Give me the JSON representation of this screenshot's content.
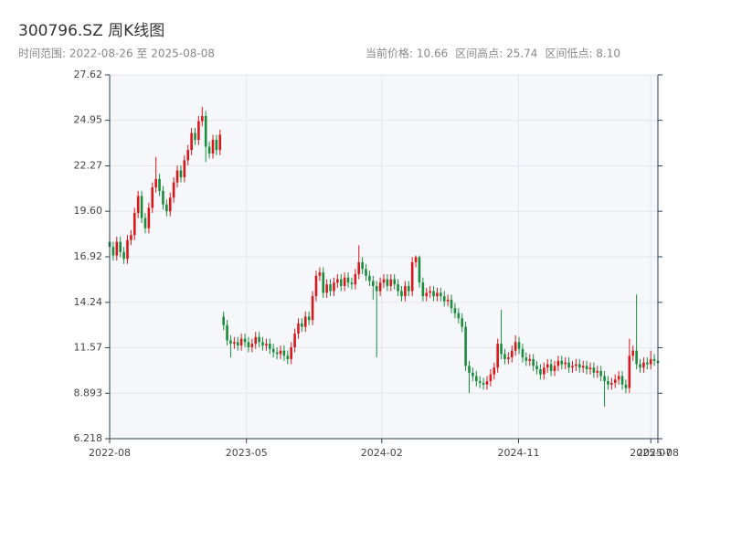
{
  "chart_data": {
    "type": "candlestick",
    "title": "300796.SZ 周K线图",
    "subtitle": "时间范围: 2022-08-26 至 2025-08-08",
    "stats": [
      "当前价格: 10.66",
      "区间高点: 25.74",
      "区间低点: 8.10"
    ],
    "up_color": "#d7191c",
    "down_color": "#1a8c3c",
    "grid": true,
    "ylim": [
      6.218,
      27.62
    ],
    "yticks": [
      6.218,
      8.893,
      11.57,
      14.24,
      16.92,
      {
        "value": 19.6,
        "label": "19.60"
      },
      22.27,
      24.95,
      27.62
    ],
    "xlim": [
      "2022-08-26",
      "2025-08-08"
    ],
    "xticks": [
      {
        "value": "2022-08-26",
        "label": "2022-08"
      },
      {
        "value": "2023-05-22",
        "label": "2023-05"
      },
      {
        "value": "2024-02-12",
        "label": "2024-02"
      },
      {
        "value": "2024-11-07",
        "label": "2024-11"
      },
      {
        "value": "2025-07-25",
        "label": "2025-07"
      },
      {
        "value": "2025-08-08",
        "label": "2025-08"
      }
    ],
    "x": [
      "2022-08-26",
      "2022-09-02",
      "2022-09-09",
      "2022-09-16",
      "2022-09-23",
      "2022-09-30",
      "2022-10-07",
      "2022-10-14",
      "2022-10-21",
      "2022-10-28",
      "2022-11-04",
      "2022-11-11",
      "2022-11-18",
      "2022-11-25",
      "2022-12-02",
      "2022-12-09",
      "2022-12-16",
      "2022-12-23",
      "2022-12-30",
      "2023-01-06",
      "2023-01-13",
      "2023-01-20",
      "2023-01-27",
      "2023-02-03",
      "2023-02-10",
      "2023-02-17",
      "2023-02-24",
      "2023-03-03",
      "2023-03-10",
      "2023-03-17",
      "2023-03-24",
      "2023-03-31",
      "2023-04-07",
      "2023-04-14",
      "2023-04-21",
      "2023-04-28",
      "2023-05-05",
      "2023-05-12",
      "2023-05-19",
      "2023-05-26",
      "2023-06-02",
      "2023-06-09",
      "2023-06-16",
      "2023-06-23",
      "2023-06-30",
      "2023-07-07",
      "2023-07-14",
      "2023-07-21",
      "2023-07-28",
      "2023-08-04",
      "2023-08-11",
      "2023-08-18",
      "2023-08-25",
      "2023-09-01",
      "2023-09-08",
      "2023-09-15",
      "2023-09-22",
      "2023-09-29",
      "2023-10-06",
      "2023-10-13",
      "2023-10-20",
      "2023-10-27",
      "2023-11-03",
      "2023-11-10",
      "2023-11-17",
      "2023-11-24",
      "2023-12-01",
      "2023-12-08",
      "2023-12-15",
      "2023-12-22",
      "2023-12-29",
      "2024-01-05",
      "2024-01-12",
      "2024-01-19",
      "2024-01-26",
      "2024-02-02",
      "2024-02-09",
      "2024-02-16",
      "2024-02-23",
      "2024-03-01",
      "2024-03-08",
      "2024-03-15",
      "2024-03-22",
      "2024-03-29",
      "2024-04-05",
      "2024-04-12",
      "2024-04-19",
      "2024-04-26",
      "2024-05-03",
      "2024-05-10",
      "2024-05-17",
      "2024-05-24",
      "2024-05-31",
      "2024-06-07",
      "2024-06-14",
      "2024-06-21",
      "2024-06-28",
      "2024-07-05",
      "2024-07-12",
      "2024-07-19",
      "2024-07-26",
      "2024-08-02",
      "2024-08-09",
      "2024-08-16",
      "2024-08-23",
      "2024-08-30",
      "2024-09-06",
      "2024-09-13",
      "2024-09-20",
      "2024-09-27",
      "2024-10-04",
      "2024-10-11",
      "2024-10-18",
      "2024-10-25",
      "2024-11-01",
      "2024-11-08",
      "2024-11-15",
      "2024-11-22",
      "2024-11-29",
      "2024-12-06",
      "2024-12-13",
      "2024-12-20",
      "2024-12-27",
      "2025-01-03",
      "2025-01-10",
      "2025-01-17",
      "2025-01-24",
      "2025-01-31",
      "2025-02-07",
      "2025-02-14",
      "2025-02-21",
      "2025-02-28",
      "2025-03-07",
      "2025-03-14",
      "2025-03-21",
      "2025-03-28",
      "2025-04-04",
      "2025-04-11",
      "2025-04-18",
      "2025-04-25",
      "2025-05-02",
      "2025-05-09",
      "2025-05-16",
      "2025-05-23",
      "2025-05-30",
      "2025-06-06",
      "2025-06-13",
      "2025-06-20",
      "2025-06-27",
      "2025-07-04",
      "2025-07-11",
      "2025-07-18",
      "2025-07-25",
      "2025-08-01",
      "2025-08-08"
    ],
    "open": [
      17.8,
      17.5,
      17.0,
      17.8,
      17.2,
      16.8,
      17.9,
      18.2,
      19.5,
      20.5,
      19.2,
      18.6,
      19.8,
      21.0,
      21.5,
      20.8,
      20.0,
      19.6,
      20.4,
      21.3,
      22.0,
      21.6,
      22.6,
      23.2,
      24.2,
      23.8,
      24.9,
      25.2,
      23.4,
      23.0,
      23.8,
      23.2,
      13.4,
      12.9,
      12.0,
      11.8,
      11.9,
      11.7,
      12.1,
      11.9,
      11.6,
      11.8,
      12.2,
      11.9,
      11.7,
      11.8,
      11.5,
      11.3,
      11.2,
      11.4,
      11.1,
      10.9,
      11.6,
      12.4,
      13.0,
      12.8,
      13.4,
      13.2,
      14.6,
      15.8,
      16.0,
      14.8,
      15.3,
      14.9,
      15.4,
      15.6,
      15.2,
      15.7,
      15.4,
      15.3,
      15.9,
      16.6,
      16.2,
      15.8,
      15.5,
      15.2,
      14.9,
      15.4,
      15.6,
      15.2,
      15.6,
      15.3,
      14.9,
      14.6,
      15.2,
      14.9,
      16.6,
      16.9,
      15.4,
      14.6,
      14.8,
      14.9,
      14.6,
      14.8,
      14.6,
      14.3,
      14.4,
      13.9,
      13.6,
      13.3,
      12.8,
      10.5,
      10.1,
      9.9,
      9.6,
      9.5,
      9.4,
      9.6,
      10.0,
      10.4,
      11.8,
      11.2,
      10.9,
      11.0,
      11.4,
      11.9,
      11.5,
      11.0,
      10.8,
      10.9,
      10.5,
      10.3,
      10.0,
      10.4,
      10.6,
      10.2,
      10.5,
      10.8,
      10.6,
      10.7,
      10.4,
      10.5,
      10.6,
      10.4,
      10.5,
      10.3,
      10.4,
      10.1,
      10.2,
      9.9,
      9.6,
      9.4,
      9.5,
      9.7,
      9.9,
      9.4,
      9.2,
      11.1,
      11.4,
      10.6,
      10.4,
      10.7,
      10.6,
      10.9,
      10.8
    ],
    "high": [
      18.1,
      17.8,
      18.1,
      18.1,
      17.5,
      18.2,
      18.5,
      19.8,
      20.8,
      20.8,
      19.5,
      20.1,
      21.3,
      22.8,
      21.8,
      21.1,
      20.3,
      20.7,
      21.6,
      22.3,
      22.3,
      22.9,
      23.5,
      24.5,
      24.5,
      25.2,
      25.74,
      25.5,
      23.7,
      24.1,
      24.1,
      24.4,
      13.7,
      13.2,
      12.3,
      12.2,
      12.2,
      12.4,
      12.4,
      12.2,
      12.1,
      12.5,
      12.5,
      12.2,
      12.1,
      12.1,
      11.8,
      11.6,
      11.7,
      11.7,
      11.4,
      11.9,
      12.7,
      13.3,
      13.3,
      13.7,
      13.7,
      14.9,
      16.1,
      16.3,
      16.3,
      15.6,
      15.6,
      15.7,
      15.9,
      15.9,
      16.0,
      16.0,
      15.7,
      16.2,
      17.6,
      16.9,
      16.5,
      16.1,
      15.8,
      15.5,
      15.7,
      15.9,
      15.9,
      15.9,
      15.9,
      15.6,
      15.2,
      15.5,
      15.5,
      16.9,
      17.0,
      17.0,
      15.7,
      15.1,
      15.2,
      15.2,
      15.1,
      15.1,
      14.9,
      14.7,
      14.7,
      14.2,
      13.9,
      13.6,
      13.1,
      10.8,
      10.4,
      10.2,
      9.9,
      9.8,
      9.9,
      10.3,
      10.7,
      12.1,
      13.8,
      11.5,
      11.3,
      11.7,
      12.3,
      12.2,
      11.8,
      11.3,
      11.2,
      11.2,
      10.8,
      10.6,
      10.7,
      10.9,
      10.9,
      10.8,
      11.1,
      11.1,
      11.0,
      11.0,
      10.8,
      10.9,
      10.9,
      10.8,
      10.8,
      10.7,
      10.7,
      10.5,
      10.5,
      10.2,
      9.9,
      9.8,
      10.0,
      10.2,
      10.2,
      9.7,
      12.1,
      11.7,
      14.7,
      10.9,
      11.0,
      11.0,
      11.4,
      11.2,
      11.1
    ],
    "low": [
      17.2,
      16.7,
      16.7,
      16.9,
      16.5,
      16.5,
      17.6,
      17.9,
      19.2,
      18.9,
      18.3,
      18.3,
      19.5,
      20.7,
      20.5,
      19.7,
      19.3,
      19.3,
      20.1,
      21.0,
      21.3,
      21.3,
      22.3,
      22.9,
      23.5,
      23.5,
      24.6,
      22.5,
      22.7,
      22.7,
      22.9,
      22.9,
      12.6,
      11.7,
      11.0,
      11.5,
      11.4,
      11.4,
      11.6,
      11.3,
      11.3,
      11.5,
      11.6,
      11.4,
      11.4,
      11.2,
      11.0,
      10.9,
      10.9,
      10.8,
      10.6,
      10.6,
      11.3,
      12.1,
      12.5,
      12.5,
      12.9,
      12.9,
      14.3,
      15.5,
      14.5,
      14.5,
      14.6,
      14.6,
      15.1,
      14.9,
      14.9,
      15.1,
      15.0,
      15.0,
      15.6,
      15.9,
      15.5,
      15.2,
      14.4,
      11.0,
      14.6,
      15.1,
      14.9,
      14.9,
      15.0,
      14.6,
      14.3,
      14.3,
      14.6,
      14.6,
      16.3,
      15.1,
      14.3,
      14.3,
      14.5,
      14.3,
      14.3,
      14.3,
      14.0,
      14.0,
      13.6,
      13.3,
      13.0,
      12.5,
      10.2,
      8.9,
      9.6,
      9.3,
      9.2,
      9.1,
      9.1,
      9.3,
      9.7,
      10.1,
      10.9,
      10.6,
      10.6,
      10.7,
      11.1,
      11.2,
      10.7,
      10.5,
      10.5,
      10.2,
      10.0,
      9.7,
      9.7,
      10.1,
      9.9,
      9.9,
      10.2,
      10.3,
      10.3,
      10.1,
      10.1,
      10.2,
      10.1,
      10.1,
      10.0,
      10.0,
      9.8,
      9.8,
      9.6,
      8.1,
      9.1,
      9.1,
      9.2,
      9.4,
      9.1,
      8.9,
      8.9,
      10.8,
      10.3,
      10.1,
      10.1,
      10.3,
      10.3,
      10.5,
      10.4
    ],
    "close": [
      17.5,
      17.0,
      17.8,
      17.2,
      16.8,
      17.9,
      18.2,
      19.5,
      20.5,
      19.2,
      18.6,
      19.8,
      21.0,
      21.5,
      20.8,
      20.0,
      19.6,
      20.4,
      21.3,
      22.0,
      21.6,
      22.6,
      23.2,
      24.2,
      23.8,
      24.9,
      25.2,
      23.4,
      23.0,
      23.8,
      23.2,
      24.1,
      12.9,
      12.0,
      11.8,
      11.9,
      11.7,
      12.1,
      11.9,
      11.6,
      11.8,
      12.2,
      11.9,
      11.7,
      11.8,
      11.5,
      11.3,
      11.2,
      11.4,
      11.1,
      10.9,
      11.6,
      12.4,
      13.0,
      12.8,
      13.4,
      13.2,
      14.6,
      15.8,
      16.0,
      14.8,
      15.3,
      14.9,
      15.4,
      15.6,
      15.2,
      15.7,
      15.4,
      15.3,
      15.9,
      16.6,
      16.2,
      15.8,
      15.5,
      15.2,
      14.9,
      15.4,
      15.6,
      15.2,
      15.6,
      15.3,
      14.9,
      14.6,
      15.2,
      14.9,
      16.6,
      16.9,
      15.4,
      14.6,
      14.8,
      14.9,
      14.6,
      14.8,
      14.6,
      14.3,
      14.4,
      13.9,
      13.6,
      13.3,
      12.8,
      10.5,
      10.1,
      9.9,
      9.6,
      9.5,
      9.4,
      9.6,
      10.0,
      10.4,
      11.8,
      11.2,
      10.9,
      11.0,
      11.4,
      11.9,
      11.5,
      11.0,
      10.8,
      10.9,
      10.5,
      10.3,
      10.0,
      10.4,
      10.6,
      10.2,
      10.5,
      10.8,
      10.6,
      10.7,
      10.4,
      10.5,
      10.6,
      10.4,
      10.5,
      10.3,
      10.4,
      10.1,
      10.2,
      9.9,
      9.6,
      9.4,
      9.5,
      9.7,
      9.9,
      9.4,
      9.2,
      11.1,
      11.4,
      10.6,
      10.4,
      10.7,
      10.6,
      10.9,
      10.8,
      10.66
    ]
  }
}
